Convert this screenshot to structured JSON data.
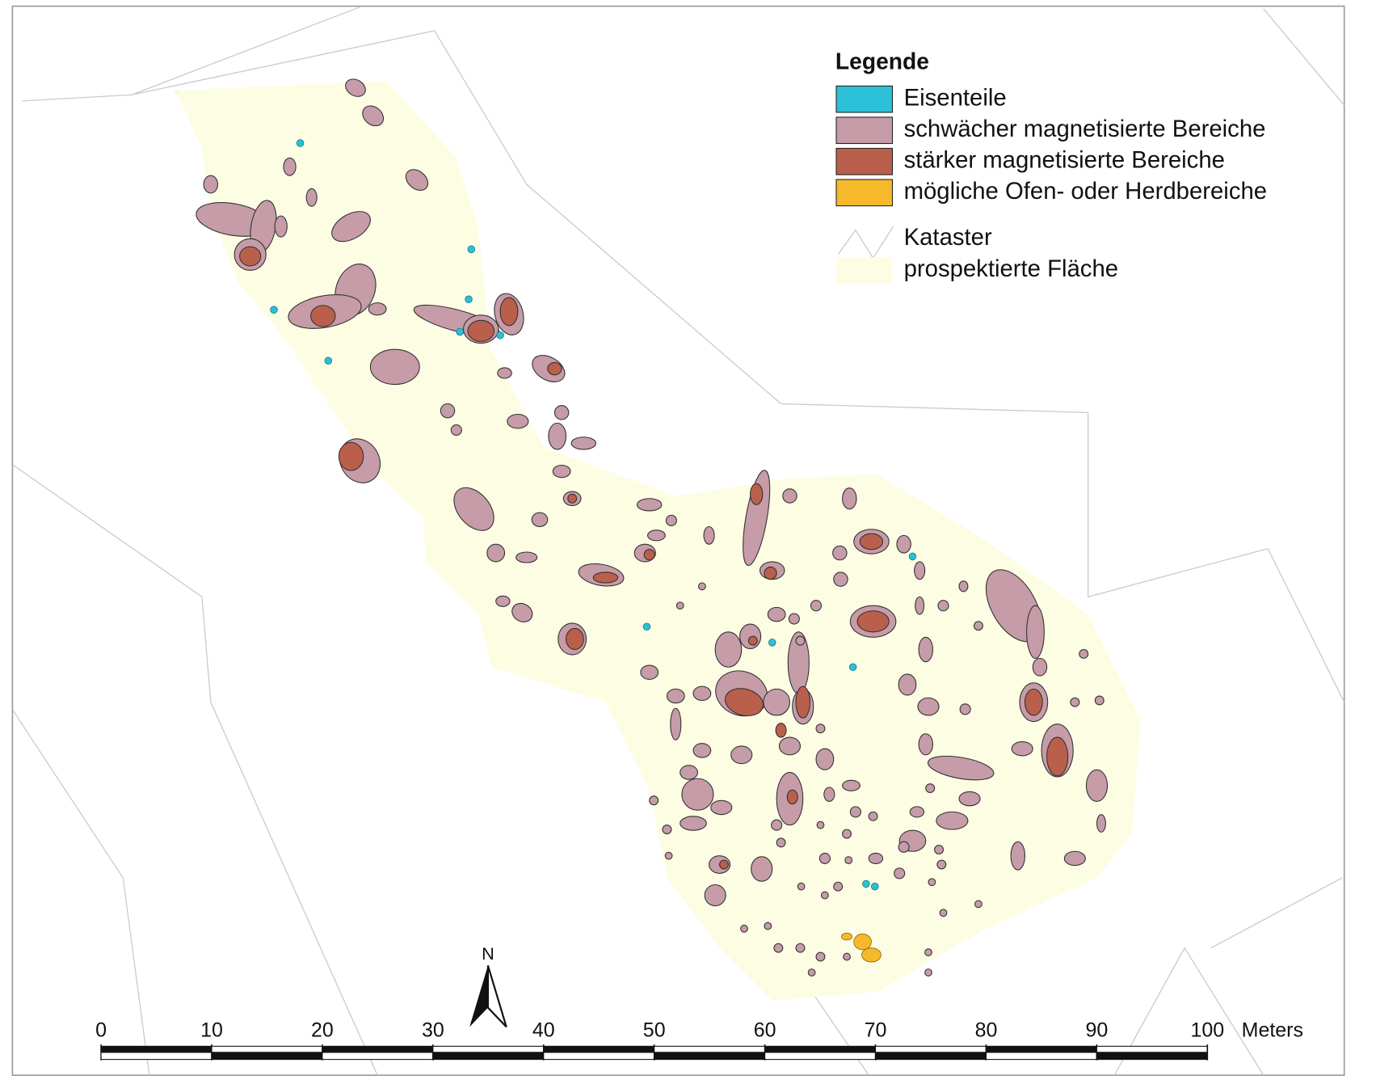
{
  "legend": {
    "title": "Legende",
    "areas": [
      {
        "label": "Eisenteile",
        "color": "#2cc0d8"
      },
      {
        "label": "schwächer magnetisierte Bereiche",
        "color": "#c59ca8"
      },
      {
        "label": "stärker magnetisierte Bereiche",
        "color": "#bb5f4d"
      },
      {
        "label": "mögliche Ofen- oder Herdbereiche",
        "color": "#f6b92c"
      }
    ],
    "base_layers": [
      {
        "label": "Kataster",
        "color": "#c9c9d6"
      },
      {
        "label": "prospektierte Fläche",
        "color": "#fdfde4"
      }
    ]
  },
  "scale_bar": {
    "ticks": [
      0,
      10,
      20,
      30,
      40,
      50,
      60,
      70,
      80,
      90,
      100
    ],
    "xlim": [
      0,
      100
    ],
    "unit": "Meters"
  },
  "north_arrow": {
    "label": "N"
  }
}
